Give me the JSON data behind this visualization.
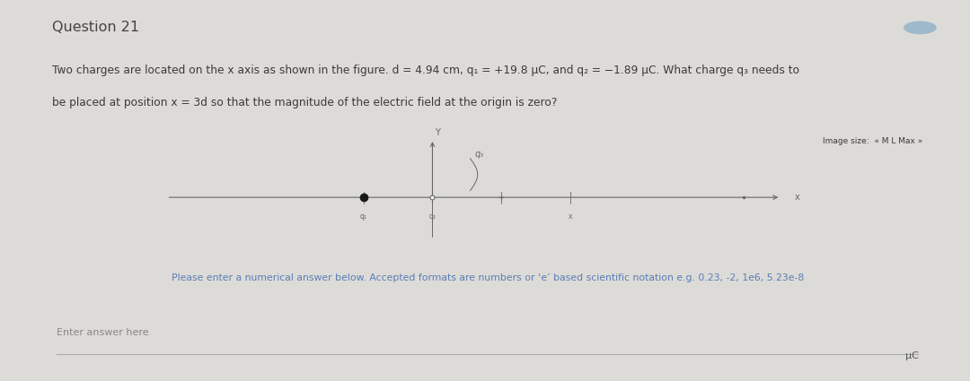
{
  "title": "Question 21",
  "q_line1": "Two charges are located on the x axis as shown in the figure. d = 4.94 cm, q₁ = +19.8 μC, and q₂ = −1.89 μC. What charge q₃ needs to",
  "q_line2": "be placed at position x = 3d so that the magnitude of the electric field at the origin is zero?",
  "image_size_label": "Image size:  « M L Max »",
  "instruction": "Please enter a numerical answer below. Accepted formats are numbers or ‘e’ based scientific notation e.g. 0.23, -2, 1e6, 5.23e-8",
  "answer_label": "Enter answer here",
  "unit": "μC",
  "outer_bg": "#dddbd8",
  "card_bg": "#f5f4f2",
  "fig_area_bg": "#e4e2df",
  "separator_color": "#c0bebb",
  "text_color": "#3a3a3a",
  "title_color": "#444444",
  "axis_color": "#666666",
  "instr_color": "#5a7db5",
  "input_line_color": "#aaaaaa",
  "answer_text_color": "#888888",
  "unit_color": "#555555",
  "circle_color": "#9eb8cc",
  "title_fs": 11.5,
  "body_fs": 8.8,
  "instr_fs": 7.8,
  "ans_fs": 8.0
}
